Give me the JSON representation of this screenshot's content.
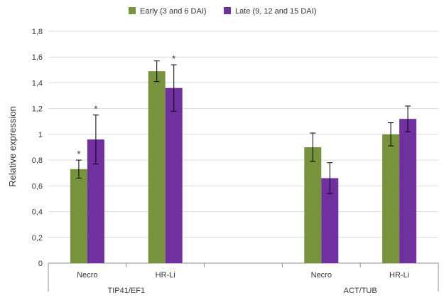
{
  "chart_data": {
    "type": "bar",
    "ylabel": "Relative expression",
    "ylim": [
      0,
      1.8
    ],
    "yticks": [
      0,
      0.2,
      0.4,
      0.6,
      0.8,
      1,
      1.2,
      1.4,
      1.6,
      1.8
    ],
    "ytick_labels": [
      "0",
      "0,2",
      "0,4",
      "0,6",
      "0,8",
      "1",
      "1,2",
      "1,4",
      "1,6",
      "1,8"
    ],
    "grid": true,
    "legend_position": "top",
    "groups": [
      {
        "label": "TIP41/EF1",
        "categories": [
          "Necro",
          "HR-Li"
        ]
      },
      {
        "label": "ACT/TUB",
        "categories": [
          "Necro",
          "HR-Li"
        ]
      }
    ],
    "series": [
      {
        "name": "Early (3 and 6 DAI)",
        "color": "#77933c",
        "values": [
          0.73,
          1.49,
          0.9,
          1.0
        ],
        "errors": [
          0.07,
          0.08,
          0.11,
          0.09
        ],
        "significant": [
          true,
          false,
          false,
          false
        ]
      },
      {
        "name": "Late (9, 12 and 15 DAI)",
        "color": "#7030a0",
        "values": [
          0.96,
          1.36,
          0.66,
          1.12
        ],
        "errors": [
          0.19,
          0.18,
          0.12,
          0.1
        ],
        "significant": [
          true,
          true,
          false,
          false
        ]
      }
    ],
    "significance_marker": "*"
  }
}
